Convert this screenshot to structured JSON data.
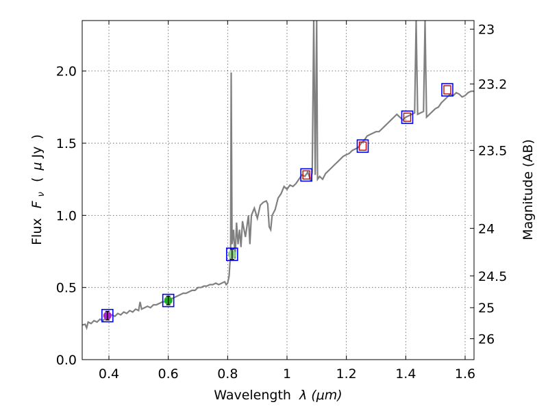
{
  "chart_data": {
    "type": "line",
    "x_label_text": "Wavelength",
    "x_label_math": "λ (μm)",
    "y_label_text": "Flux",
    "y_label_math": "F",
    "y_label_sub": "ν",
    "y_label_unit_open": "(",
    "y_label_unit_mu": "μ",
    "y_label_unit_rest": "Jy",
    "y_label_unit_close": ")",
    "y2_label": "Magnitude (AB)",
    "xlim": [
      0.31,
      1.63
    ],
    "ylim": [
      0.0,
      2.35
    ],
    "grid": true,
    "x_ticks": [
      0.4,
      0.6,
      0.8,
      1.0,
      1.2,
      1.4,
      1.6
    ],
    "x_tick_labels": [
      "0.4",
      "0.6",
      "0.8",
      "1",
      "1.2",
      "1.4",
      "1.6"
    ],
    "y_ticks": [
      0.0,
      0.5,
      1.0,
      1.5,
      2.0
    ],
    "y_tick_labels": [
      "0.0",
      "0.5",
      "1.0",
      "1.5",
      "2.0"
    ],
    "mag_ticks": [
      {
        "label": "23",
        "flux": 2.29
      },
      {
        "label": "23.2",
        "flux": 1.91
      },
      {
        "label": "23.5",
        "flux": 1.45
      },
      {
        "label": "24",
        "flux": 0.91
      },
      {
        "label": "24.5",
        "flux": 0.58
      },
      {
        "label": "25",
        "flux": 0.36
      },
      {
        "label": "26",
        "flux": 0.145
      }
    ],
    "spectrum_color": "#808080",
    "spectrum": [
      [
        0.31,
        0.24
      ],
      [
        0.32,
        0.245
      ],
      [
        0.325,
        0.22
      ],
      [
        0.33,
        0.26
      ],
      [
        0.34,
        0.25
      ],
      [
        0.35,
        0.27
      ],
      [
        0.36,
        0.26
      ],
      [
        0.37,
        0.28
      ],
      [
        0.38,
        0.27
      ],
      [
        0.39,
        0.29
      ],
      [
        0.4,
        0.3
      ],
      [
        0.41,
        0.31
      ],
      [
        0.42,
        0.3
      ],
      [
        0.43,
        0.32
      ],
      [
        0.44,
        0.31
      ],
      [
        0.45,
        0.33
      ],
      [
        0.46,
        0.32
      ],
      [
        0.47,
        0.34
      ],
      [
        0.48,
        0.33
      ],
      [
        0.49,
        0.35
      ],
      [
        0.5,
        0.34
      ],
      [
        0.505,
        0.4
      ],
      [
        0.51,
        0.35
      ],
      [
        0.52,
        0.36
      ],
      [
        0.53,
        0.37
      ],
      [
        0.54,
        0.36
      ],
      [
        0.55,
        0.38
      ],
      [
        0.56,
        0.38
      ],
      [
        0.57,
        0.39
      ],
      [
        0.58,
        0.4
      ],
      [
        0.59,
        0.4
      ],
      [
        0.6,
        0.41
      ],
      [
        0.61,
        0.42
      ],
      [
        0.62,
        0.43
      ],
      [
        0.63,
        0.44
      ],
      [
        0.64,
        0.45
      ],
      [
        0.65,
        0.46
      ],
      [
        0.66,
        0.46
      ],
      [
        0.67,
        0.47
      ],
      [
        0.68,
        0.48
      ],
      [
        0.69,
        0.48
      ],
      [
        0.7,
        0.5
      ],
      [
        0.71,
        0.5
      ],
      [
        0.72,
        0.51
      ],
      [
        0.73,
        0.51
      ],
      [
        0.74,
        0.52
      ],
      [
        0.75,
        0.52
      ],
      [
        0.76,
        0.53
      ],
      [
        0.77,
        0.52
      ],
      [
        0.78,
        0.53
      ],
      [
        0.79,
        0.54
      ],
      [
        0.795,
        0.52
      ],
      [
        0.8,
        0.53
      ],
      [
        0.805,
        0.58
      ],
      [
        0.81,
        0.75
      ],
      [
        0.812,
        1.99
      ],
      [
        0.815,
        0.8
      ],
      [
        0.82,
        0.9
      ],
      [
        0.825,
        0.7
      ],
      [
        0.83,
        0.95
      ],
      [
        0.835,
        0.8
      ],
      [
        0.84,
        0.9
      ],
      [
        0.845,
        0.78
      ],
      [
        0.85,
        0.96
      ],
      [
        0.86,
        0.85
      ],
      [
        0.87,
        1.0
      ],
      [
        0.875,
        0.8
      ],
      [
        0.88,
        1.0
      ],
      [
        0.89,
        1.05
      ],
      [
        0.9,
        0.98
      ],
      [
        0.91,
        1.07
      ],
      [
        0.92,
        1.09
      ],
      [
        0.93,
        1.1
      ],
      [
        0.935,
        1.08
      ],
      [
        0.94,
        0.92
      ],
      [
        0.945,
        0.9
      ],
      [
        0.95,
        1.0
      ],
      [
        0.96,
        1.04
      ],
      [
        0.97,
        1.12
      ],
      [
        0.98,
        1.15
      ],
      [
        0.99,
        1.2
      ],
      [
        1.0,
        1.18
      ],
      [
        1.01,
        1.21
      ],
      [
        1.02,
        1.2
      ],
      [
        1.03,
        1.22
      ],
      [
        1.04,
        1.25
      ],
      [
        1.05,
        1.28
      ],
      [
        1.06,
        1.27
      ],
      [
        1.07,
        1.3
      ],
      [
        1.08,
        1.24
      ],
      [
        1.085,
        1.3
      ],
      [
        1.09,
        2.36
      ],
      [
        1.095,
        1.28
      ],
      [
        1.1,
        2.36
      ],
      [
        1.103,
        1.25
      ],
      [
        1.11,
        1.27
      ],
      [
        1.12,
        1.25
      ],
      [
        1.13,
        1.29
      ],
      [
        1.14,
        1.31
      ],
      [
        1.15,
        1.33
      ],
      [
        1.16,
        1.35
      ],
      [
        1.17,
        1.37
      ],
      [
        1.18,
        1.39
      ],
      [
        1.19,
        1.41
      ],
      [
        1.2,
        1.42
      ],
      [
        1.21,
        1.43
      ],
      [
        1.22,
        1.45
      ],
      [
        1.23,
        1.46
      ],
      [
        1.24,
        1.47
      ],
      [
        1.25,
        1.5
      ],
      [
        1.26,
        1.52
      ],
      [
        1.27,
        1.55
      ],
      [
        1.28,
        1.56
      ],
      [
        1.29,
        1.57
      ],
      [
        1.3,
        1.58
      ],
      [
        1.31,
        1.58
      ],
      [
        1.32,
        1.6
      ],
      [
        1.33,
        1.62
      ],
      [
        1.34,
        1.64
      ],
      [
        1.35,
        1.66
      ],
      [
        1.36,
        1.68
      ],
      [
        1.37,
        1.7
      ],
      [
        1.38,
        1.68
      ],
      [
        1.39,
        1.66
      ],
      [
        1.4,
        1.68
      ],
      [
        1.41,
        1.69
      ],
      [
        1.42,
        1.7
      ],
      [
        1.43,
        1.71
      ],
      [
        1.435,
        2.36
      ],
      [
        1.44,
        1.7
      ],
      [
        1.45,
        1.71
      ],
      [
        1.46,
        1.72
      ],
      [
        1.465,
        2.36
      ],
      [
        1.47,
        1.68
      ],
      [
        1.48,
        1.7
      ],
      [
        1.49,
        1.72
      ],
      [
        1.5,
        1.74
      ],
      [
        1.51,
        1.75
      ],
      [
        1.52,
        1.78
      ],
      [
        1.53,
        1.8
      ],
      [
        1.54,
        1.82
      ],
      [
        1.55,
        1.84
      ],
      [
        1.56,
        1.83
      ],
      [
        1.57,
        1.85
      ],
      [
        1.58,
        1.84
      ],
      [
        1.59,
        1.82
      ],
      [
        1.6,
        1.83
      ],
      [
        1.61,
        1.85
      ],
      [
        1.62,
        1.86
      ],
      [
        1.63,
        1.86
      ]
    ],
    "photometry": [
      {
        "x": 0.395,
        "y": 0.305,
        "err": 0.03,
        "color": "#aa22cc"
      },
      {
        "x": 0.6,
        "y": 0.41,
        "err": 0.03,
        "color": "#22aa22"
      },
      {
        "x": 0.815,
        "y": 0.73,
        "err": 0.035,
        "color": "#88cc88"
      },
      {
        "x": 1.065,
        "y": 1.28,
        "err": 0.0,
        "color": "#ffffff"
      },
      {
        "x": 1.255,
        "y": 1.48,
        "err": 0.0,
        "color": "#ffffff"
      },
      {
        "x": 1.405,
        "y": 1.68,
        "err": 0.0,
        "color": "#ffffff"
      },
      {
        "x": 1.54,
        "y": 1.87,
        "err": 0.0,
        "color": "#ffffff"
      }
    ],
    "model_box_color": "#0000ff",
    "model_inner_color": "#cc0000"
  }
}
